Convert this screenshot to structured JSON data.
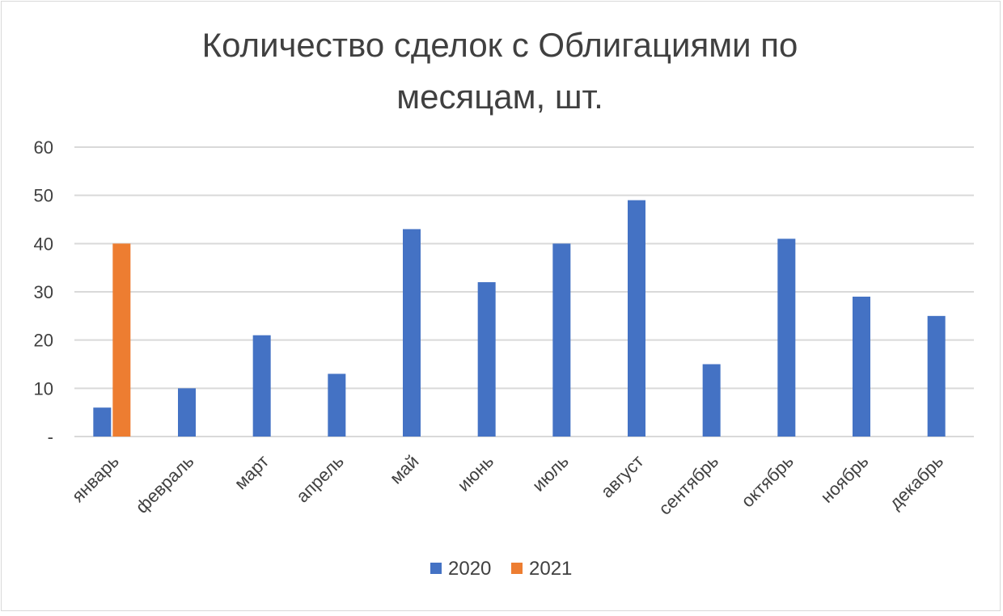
{
  "chart_data": {
    "type": "bar",
    "title_lines": [
      "Количество сделок с Облигациями по",
      "месяцам, шт."
    ],
    "categories": [
      "январь",
      "февраль",
      "март",
      "апрель",
      "май",
      "июнь",
      "июль",
      "август",
      "сентябрь",
      "октябрь",
      "ноябрь",
      "декабрь"
    ],
    "y_ticks": [
      "-",
      "10",
      "20",
      "30",
      "40",
      "50",
      "60"
    ],
    "ylim": [
      0,
      60
    ],
    "grid": true,
    "legend_position": "bottom",
    "series": [
      {
        "name": "2020",
        "color": "#4472c4",
        "values": [
          6,
          10,
          21,
          13,
          43,
          32,
          40,
          49,
          15,
          41,
          29,
          25
        ]
      },
      {
        "name": "2021",
        "color": "#ed7d31",
        "values": [
          40,
          null,
          null,
          null,
          null,
          null,
          null,
          null,
          null,
          null,
          null,
          null
        ]
      }
    ]
  }
}
